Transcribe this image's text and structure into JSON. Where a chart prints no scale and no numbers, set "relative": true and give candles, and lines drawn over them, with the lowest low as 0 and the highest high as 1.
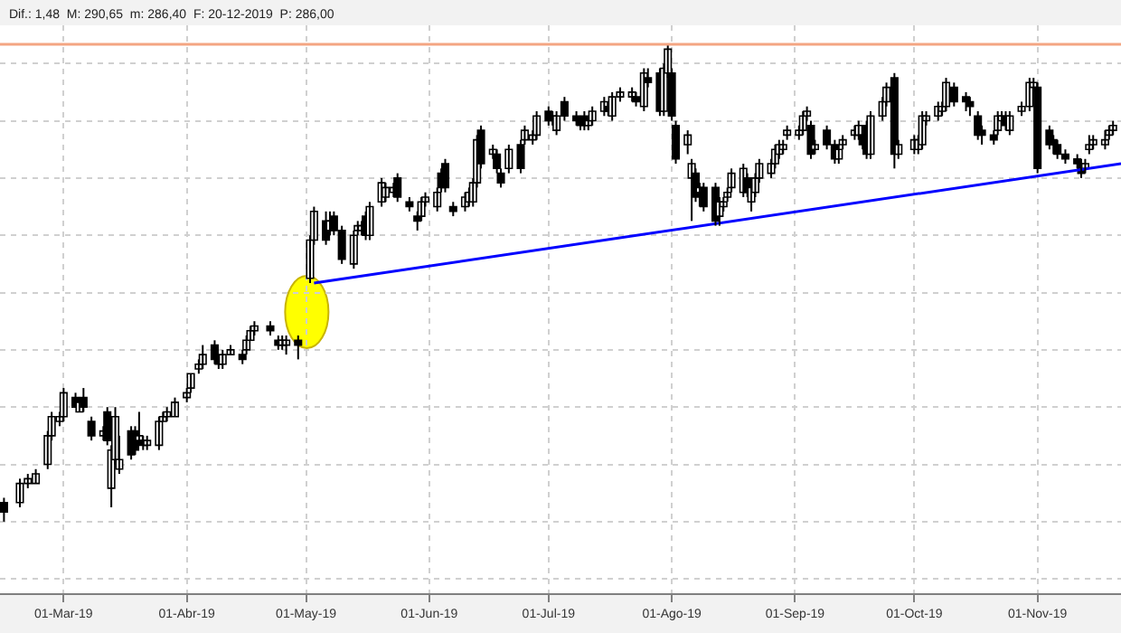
{
  "chart_data": {
    "type": "candlestick",
    "relative": true,
    "grid": true,
    "annotations": [
      "Dif.: 1,48  M: 290,65  m: 286,40  F: 20-12-2019  P: 286,00"
    ],
    "xlim": [
      "2019-02-13",
      "2019-11-22"
    ],
    "xticks": [
      {
        "value": "2019-03-01",
        "label": "01-Mar-19"
      },
      {
        "value": "2019-04-01",
        "label": "01-Abr-19"
      },
      {
        "value": "2019-05-01",
        "label": "01-May-19"
      },
      {
        "value": "2019-06-01",
        "label": "01-Jun-19"
      },
      {
        "value": "2019-07-01",
        "label": "01-Jul-19"
      },
      {
        "value": "2019-08-01",
        "label": "01-Ago-19"
      },
      {
        "value": "2019-09-01",
        "label": "01-Sep-19"
      },
      {
        "value": "2019-10-01",
        "label": "01-Oct-19"
      },
      {
        "value": "2019-11-01",
        "label": "01-Nov-19"
      }
    ],
    "ref_lines": [
      {
        "axis": "y",
        "value": 1.0,
        "color": "#f4a582"
      }
    ],
    "series": [
      {
        "x": [
          "2019-02-14",
          "2019-02-18",
          "2019-02-20",
          "2019-02-22",
          "2019-02-25",
          "2019-02-26",
          "2019-02-28",
          "2019-03-01",
          "2019-03-04",
          "2019-03-05",
          "2019-03-06",
          "2019-03-08",
          "2019-03-11",
          "2019-03-12",
          "2019-03-13",
          "2019-03-14",
          "2019-03-15",
          "2019-03-18",
          "2019-03-19",
          "2019-03-20",
          "2019-03-21",
          "2019-03-22",
          "2019-03-25",
          "2019-03-26",
          "2019-03-27",
          "2019-03-29",
          "2019-04-01",
          "2019-04-02",
          "2019-04-04",
          "2019-04-05",
          "2019-04-08",
          "2019-04-09",
          "2019-04-10",
          "2019-04-12",
          "2019-04-15",
          "2019-04-16",
          "2019-04-17",
          "2019-04-18",
          "2019-04-22",
          "2019-04-24",
          "2019-04-25",
          "2019-04-26",
          "2019-04-29",
          "2019-05-02",
          "2019-05-03",
          "2019-05-06",
          "2019-05-07",
          "2019-05-08",
          "2019-05-10",
          "2019-05-13",
          "2019-05-14",
          "2019-05-15",
          "2019-05-16",
          "2019-05-17",
          "2019-05-20",
          "2019-05-21",
          "2019-05-23",
          "2019-05-24",
          "2019-05-27",
          "2019-05-29",
          "2019-05-30",
          "2019-05-31",
          "2019-06-03",
          "2019-06-04",
          "2019-06-05",
          "2019-06-07",
          "2019-06-10",
          "2019-06-11",
          "2019-06-12",
          "2019-06-13",
          "2019-06-14",
          "2019-06-17",
          "2019-06-18",
          "2019-06-19",
          "2019-06-21",
          "2019-06-24",
          "2019-06-25",
          "2019-06-27",
          "2019-06-28",
          "2019-07-01",
          "2019-07-02",
          "2019-07-03",
          "2019-07-05",
          "2019-07-08",
          "2019-07-09",
          "2019-07-10",
          "2019-07-11",
          "2019-07-12",
          "2019-07-15",
          "2019-07-16",
          "2019-07-17",
          "2019-07-19",
          "2019-07-22",
          "2019-07-23",
          "2019-07-25",
          "2019-07-26",
          "2019-07-29",
          "2019-07-30",
          "2019-07-31",
          "2019-08-01",
          "2019-08-02",
          "2019-08-05",
          "2019-08-06",
          "2019-08-07",
          "2019-08-08",
          "2019-08-09",
          "2019-08-12",
          "2019-08-13",
          "2019-08-14",
          "2019-08-15",
          "2019-08-16",
          "2019-08-19",
          "2019-08-20",
          "2019-08-21",
          "2019-08-22",
          "2019-08-23",
          "2019-08-26",
          "2019-08-27",
          "2019-08-28",
          "2019-08-29",
          "2019-08-30",
          "2019-09-02",
          "2019-09-03",
          "2019-09-04",
          "2019-09-05",
          "2019-09-06",
          "2019-09-09",
          "2019-09-11",
          "2019-09-12",
          "2019-09-13",
          "2019-09-16",
          "2019-09-17",
          "2019-09-18",
          "2019-09-19",
          "2019-09-20",
          "2019-09-23",
          "2019-09-24",
          "2019-09-26",
          "2019-09-27",
          "2019-10-01",
          "2019-10-02",
          "2019-10-03",
          "2019-10-04",
          "2019-10-07",
          "2019-10-08",
          "2019-10-09",
          "2019-10-11",
          "2019-10-14",
          "2019-10-15",
          "2019-10-17",
          "2019-10-18",
          "2019-10-21",
          "2019-10-22",
          "2019-10-23",
          "2019-10-24",
          "2019-10-25",
          "2019-10-28",
          "2019-10-30",
          "2019-10-31",
          "2019-11-01",
          "2019-11-04",
          "2019-11-05",
          "2019-11-06",
          "2019-11-08",
          "2019-11-11",
          "2019-11-12",
          "2019-11-13",
          "2019-11-14",
          "2019-11-15",
          "2019-11-18",
          "2019-11-19",
          "2019-11-20"
        ],
        "ohlc": [
          [
            0.04,
            0.05,
            0.0,
            0.02
          ],
          [
            0.04,
            0.09,
            0.03,
            0.08
          ],
          [
            0.08,
            0.1,
            0.07,
            0.09
          ],
          [
            0.08,
            0.11,
            0.08,
            0.1
          ],
          [
            0.12,
            0.19,
            0.11,
            0.18
          ],
          [
            0.18,
            0.23,
            0.17,
            0.22
          ],
          [
            0.21,
            0.23,
            0.2,
            0.22
          ],
          [
            0.22,
            0.28,
            0.21,
            0.27
          ],
          [
            0.26,
            0.27,
            0.24,
            0.24
          ],
          [
            0.23,
            0.26,
            0.23,
            0.25
          ],
          [
            0.26,
            0.28,
            0.23,
            0.24
          ],
          [
            0.21,
            0.22,
            0.17,
            0.18
          ],
          [
            0.18,
            0.2,
            0.17,
            0.19
          ],
          [
            0.23,
            0.24,
            0.16,
            0.17
          ],
          [
            0.07,
            0.16,
            0.03,
            0.15
          ],
          [
            0.13,
            0.24,
            0.12,
            0.22
          ],
          [
            0.11,
            0.18,
            0.1,
            0.13
          ],
          [
            0.19,
            0.2,
            0.13,
            0.14
          ],
          [
            0.19,
            0.2,
            0.14,
            0.15
          ],
          [
            0.17,
            0.23,
            0.16,
            0.18
          ],
          [
            0.17,
            0.18,
            0.15,
            0.16
          ],
          [
            0.16,
            0.18,
            0.15,
            0.17
          ],
          [
            0.16,
            0.22,
            0.15,
            0.21
          ],
          [
            0.21,
            0.23,
            0.21,
            0.22
          ],
          [
            0.22,
            0.24,
            0.21,
            0.23
          ],
          [
            0.22,
            0.26,
            0.22,
            0.25
          ],
          [
            0.26,
            0.28,
            0.25,
            0.27
          ],
          [
            0.28,
            0.31,
            0.27,
            0.31
          ],
          [
            0.32,
            0.34,
            0.31,
            0.33
          ],
          [
            0.33,
            0.37,
            0.32,
            0.35
          ],
          [
            0.37,
            0.38,
            0.33,
            0.34
          ],
          [
            0.34,
            0.35,
            0.32,
            0.33
          ],
          [
            0.33,
            0.36,
            0.32,
            0.35
          ],
          [
            0.35,
            0.37,
            0.35,
            0.36
          ],
          [
            0.35,
            0.36,
            0.33,
            0.34
          ],
          [
            0.36,
            0.39,
            0.35,
            0.38
          ],
          [
            0.38,
            0.41,
            0.38,
            0.4
          ],
          [
            0.4,
            0.42,
            0.39,
            0.41
          ],
          [
            0.41,
            0.42,
            0.39,
            0.4
          ],
          [
            0.38,
            0.39,
            0.36,
            0.37
          ],
          [
            0.37,
            0.39,
            0.36,
            0.38
          ],
          [
            0.37,
            0.39,
            0.35,
            0.38
          ],
          [
            0.38,
            0.39,
            0.34,
            0.37
          ],
          [
            0.51,
            0.6,
            0.5,
            0.59
          ],
          [
            0.59,
            0.66,
            0.58,
            0.65
          ],
          [
            0.63,
            0.65,
            0.58,
            0.59
          ],
          [
            0.61,
            0.65,
            0.6,
            0.63
          ],
          [
            0.64,
            0.65,
            0.6,
            0.61
          ],
          [
            0.61,
            0.62,
            0.54,
            0.55
          ],
          [
            0.54,
            0.61,
            0.53,
            0.6
          ],
          [
            0.61,
            0.63,
            0.6,
            0.62
          ],
          [
            0.61,
            0.63,
            0.6,
            0.62
          ],
          [
            0.64,
            0.65,
            0.59,
            0.6
          ],
          [
            0.6,
            0.67,
            0.59,
            0.66
          ],
          [
            0.67,
            0.72,
            0.66,
            0.71
          ],
          [
            0.68,
            0.71,
            0.67,
            0.7
          ],
          [
            0.69,
            0.71,
            0.68,
            0.7
          ],
          [
            0.72,
            0.73,
            0.67,
            0.68
          ],
          [
            0.67,
            0.68,
            0.65,
            0.66
          ],
          [
            0.64,
            0.65,
            0.61,
            0.63
          ],
          [
            0.64,
            0.68,
            0.63,
            0.67
          ],
          [
            0.67,
            0.69,
            0.66,
            0.68
          ],
          [
            0.66,
            0.7,
            0.65,
            0.69
          ],
          [
            0.73,
            0.74,
            0.69,
            0.7
          ],
          [
            0.75,
            0.76,
            0.69,
            0.7
          ],
          [
            0.66,
            0.67,
            0.64,
            0.65
          ],
          [
            0.66,
            0.69,
            0.65,
            0.68
          ],
          [
            0.67,
            0.7,
            0.66,
            0.69
          ],
          [
            0.67,
            0.72,
            0.66,
            0.71
          ],
          [
            0.71,
            0.81,
            0.7,
            0.8
          ],
          [
            0.82,
            0.83,
            0.74,
            0.75
          ],
          [
            0.77,
            0.79,
            0.76,
            0.78
          ],
          [
            0.77,
            0.78,
            0.73,
            0.74
          ],
          [
            0.73,
            0.74,
            0.7,
            0.71
          ],
          [
            0.74,
            0.79,
            0.73,
            0.78
          ],
          [
            0.79,
            0.8,
            0.73,
            0.74
          ],
          [
            0.8,
            0.83,
            0.79,
            0.82
          ],
          [
            0.8,
            0.82,
            0.79,
            0.81
          ],
          [
            0.81,
            0.86,
            0.8,
            0.85
          ],
          [
            0.86,
            0.87,
            0.83,
            0.84
          ],
          [
            0.85,
            0.86,
            0.83,
            0.84
          ],
          [
            0.82,
            0.86,
            0.81,
            0.85
          ],
          [
            0.88,
            0.89,
            0.84,
            0.85
          ],
          [
            0.85,
            0.86,
            0.83,
            0.84
          ],
          [
            0.84,
            0.85,
            0.82,
            0.83
          ],
          [
            0.85,
            0.86,
            0.82,
            0.83
          ],
          [
            0.83,
            0.85,
            0.82,
            0.84
          ],
          [
            0.84,
            0.87,
            0.83,
            0.86
          ],
          [
            0.86,
            0.89,
            0.85,
            0.88
          ],
          [
            0.87,
            0.88,
            0.85,
            0.86
          ],
          [
            0.85,
            0.9,
            0.84,
            0.89
          ],
          [
            0.89,
            0.91,
            0.88,
            0.9
          ],
          [
            0.89,
            0.91,
            0.88,
            0.9
          ],
          [
            0.89,
            0.9,
            0.87,
            0.88
          ],
          [
            0.87,
            0.95,
            0.86,
            0.94
          ],
          [
            0.93,
            0.95,
            0.91,
            0.92
          ],
          [
            0.94,
            0.95,
            0.85,
            0.86
          ],
          [
            0.86,
            0.96,
            0.85,
            0.95
          ],
          [
            0.94,
            1.0,
            0.93,
            0.99
          ],
          [
            0.94,
            0.95,
            0.84,
            0.85
          ],
          [
            0.83,
            0.84,
            0.75,
            0.76
          ],
          [
            0.79,
            0.82,
            0.77,
            0.81
          ],
          [
            0.72,
            0.76,
            0.63,
            0.75
          ],
          [
            0.73,
            0.74,
            0.67,
            0.68
          ],
          [
            0.69,
            0.71,
            0.66,
            0.7
          ],
          [
            0.7,
            0.71,
            0.65,
            0.66
          ],
          [
            0.7,
            0.71,
            0.62,
            0.63
          ],
          [
            0.64,
            0.68,
            0.62,
            0.67
          ],
          [
            0.66,
            0.68,
            0.65,
            0.67
          ],
          [
            0.68,
            0.7,
            0.67,
            0.69
          ],
          [
            0.7,
            0.74,
            0.69,
            0.73
          ],
          [
            0.69,
            0.75,
            0.68,
            0.74
          ],
          [
            0.72,
            0.73,
            0.68,
            0.69
          ],
          [
            0.67,
            0.71,
            0.65,
            0.7
          ],
          [
            0.69,
            0.73,
            0.68,
            0.72
          ],
          [
            0.72,
            0.76,
            0.71,
            0.75
          ],
          [
            0.73,
            0.76,
            0.72,
            0.75
          ],
          [
            0.75,
            0.79,
            0.74,
            0.78
          ],
          [
            0.77,
            0.8,
            0.76,
            0.79
          ],
          [
            0.78,
            0.8,
            0.77,
            0.79
          ],
          [
            0.81,
            0.83,
            0.8,
            0.82
          ],
          [
            0.81,
            0.83,
            0.8,
            0.82
          ],
          [
            0.82,
            0.86,
            0.81,
            0.85
          ],
          [
            0.85,
            0.87,
            0.84,
            0.86
          ],
          [
            0.83,
            0.84,
            0.76,
            0.77
          ],
          [
            0.78,
            0.8,
            0.77,
            0.79
          ],
          [
            0.82,
            0.83,
            0.78,
            0.79
          ],
          [
            0.79,
            0.8,
            0.75,
            0.76
          ],
          [
            0.76,
            0.79,
            0.75,
            0.78
          ],
          [
            0.79,
            0.81,
            0.78,
            0.8
          ],
          [
            0.81,
            0.83,
            0.8,
            0.82
          ],
          [
            0.81,
            0.84,
            0.8,
            0.83
          ],
          [
            0.81,
            0.82,
            0.78,
            0.79
          ],
          [
            0.83,
            0.84,
            0.76,
            0.77
          ],
          [
            0.77,
            0.86,
            0.76,
            0.85
          ],
          [
            0.85,
            0.89,
            0.84,
            0.88
          ],
          [
            0.88,
            0.92,
            0.87,
            0.91
          ],
          [
            0.93,
            0.94,
            0.74,
            0.77
          ],
          [
            0.77,
            0.8,
            0.76,
            0.79
          ],
          [
            0.78,
            0.81,
            0.77,
            0.8
          ],
          [
            0.78,
            0.81,
            0.77,
            0.8
          ],
          [
            0.79,
            0.86,
            0.78,
            0.85
          ],
          [
            0.84,
            0.86,
            0.83,
            0.85
          ],
          [
            0.85,
            0.88,
            0.84,
            0.87
          ],
          [
            0.86,
            0.88,
            0.85,
            0.87
          ],
          [
            0.87,
            0.93,
            0.86,
            0.92
          ],
          [
            0.91,
            0.92,
            0.87,
            0.88
          ],
          [
            0.89,
            0.9,
            0.86,
            0.88
          ],
          [
            0.88,
            0.89,
            0.85,
            0.87
          ],
          [
            0.85,
            0.86,
            0.8,
            0.81
          ],
          [
            0.82,
            0.83,
            0.79,
            0.81
          ],
          [
            0.81,
            0.82,
            0.79,
            0.8
          ],
          [
            0.82,
            0.86,
            0.81,
            0.85
          ],
          [
            0.84,
            0.86,
            0.83,
            0.85
          ],
          [
            0.85,
            0.86,
            0.82,
            0.83
          ],
          [
            0.82,
            0.86,
            0.81,
            0.85
          ],
          [
            0.86,
            0.88,
            0.85,
            0.87
          ],
          [
            0.87,
            0.93,
            0.86,
            0.92
          ],
          [
            0.91,
            0.93,
            0.9,
            0.92
          ],
          [
            0.91,
            0.92,
            0.73,
            0.74
          ],
          [
            0.82,
            0.83,
            0.78,
            0.79
          ],
          [
            0.8,
            0.81,
            0.77,
            0.79
          ],
          [
            0.79,
            0.8,
            0.76,
            0.77
          ],
          [
            0.77,
            0.78,
            0.75,
            0.76
          ],
          [
            0.76,
            0.77,
            0.74,
            0.75
          ],
          [
            0.75,
            0.76,
            0.72,
            0.73
          ],
          [
            0.74,
            0.76,
            0.73,
            0.75
          ],
          [
            0.78,
            0.81,
            0.77,
            0.79
          ],
          [
            0.79,
            0.81,
            0.78,
            0.8
          ],
          [
            0.79,
            0.82,
            0.78,
            0.8
          ],
          [
            0.81,
            0.83,
            0.8,
            0.82
          ],
          [
            0.82,
            0.84,
            0.81,
            0.83
          ]
        ]
      },
      {
        "type": "line",
        "color": "#0000ff",
        "x": [
          "2019-05-03",
          "2019-11-22"
        ],
        "values": [
          0.5,
          0.75
        ]
      }
    ]
  }
}
